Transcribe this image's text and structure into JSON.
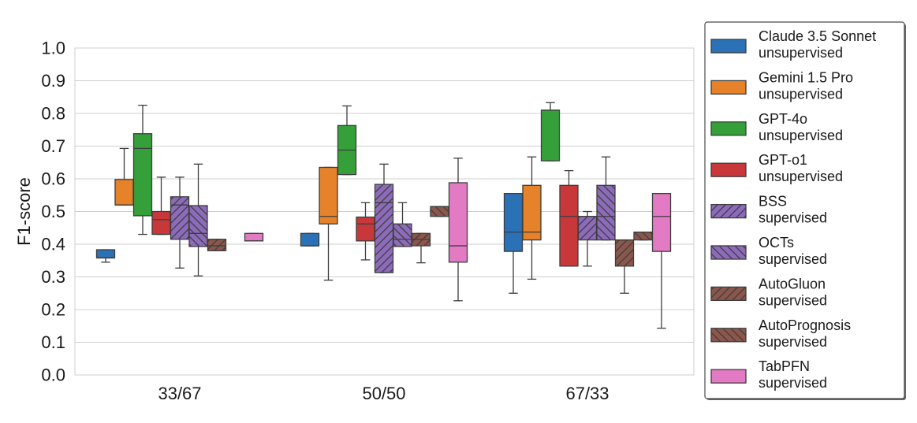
{
  "chart_data": {
    "type": "box",
    "title": "",
    "xlabel": "",
    "ylabel": "F1-score",
    "ylim": [
      0.0,
      1.0
    ],
    "yticks": [
      "0.0",
      "0.1",
      "0.2",
      "0.3",
      "0.4",
      "0.5",
      "0.6",
      "0.7",
      "0.8",
      "0.9",
      "1.0"
    ],
    "grid": true,
    "legend_position": "right-outside",
    "categories": [
      "33/67",
      "50/50",
      "67/33"
    ],
    "series": [
      {
        "name": "Claude 3.5 Sonnet",
        "sub": "unsupervised",
        "color": "#2a72b5",
        "hatch": "none",
        "boxes": [
          {
            "whislo": 0.345,
            "q1": 0.358,
            "med": 0.358,
            "q3": 0.383,
            "whishi": 0.383
          },
          {
            "whislo": 0.395,
            "q1": 0.395,
            "med": 0.395,
            "q3": 0.433,
            "whishi": 0.433
          },
          {
            "whislo": 0.25,
            "q1": 0.378,
            "med": 0.437,
            "q3": 0.555,
            "whishi": 0.555
          }
        ]
      },
      {
        "name": "Gemini 1.5 Pro",
        "sub": "unsupervised",
        "color": "#e6822a",
        "hatch": "none",
        "boxes": [
          {
            "whislo": 0.52,
            "q1": 0.52,
            "med": 0.52,
            "q3": 0.598,
            "whishi": 0.693
          },
          {
            "whislo": 0.29,
            "q1": 0.462,
            "med": 0.485,
            "q3": 0.635,
            "whishi": 0.635
          },
          {
            "whislo": 0.293,
            "q1": 0.413,
            "med": 0.437,
            "q3": 0.58,
            "whishi": 0.667
          }
        ]
      },
      {
        "name": "GPT-4o",
        "sub": "unsupervised",
        "color": "#35a03a",
        "hatch": "none",
        "boxes": [
          {
            "whislo": 0.43,
            "q1": 0.487,
            "med": 0.693,
            "q3": 0.738,
            "whishi": 0.825
          },
          {
            "whislo": 0.613,
            "q1": 0.613,
            "med": 0.688,
            "q3": 0.763,
            "whishi": 0.823
          },
          {
            "whislo": 0.655,
            "q1": 0.655,
            "med": 0.81,
            "q3": 0.81,
            "whishi": 0.833
          }
        ]
      },
      {
        "name": "GPT-o1",
        "sub": "unsupervised",
        "color": "#c8383a",
        "hatch": "none",
        "boxes": [
          {
            "whislo": 0.43,
            "q1": 0.43,
            "med": 0.475,
            "q3": 0.5,
            "whishi": 0.605
          },
          {
            "whislo": 0.352,
            "q1": 0.41,
            "med": 0.462,
            "q3": 0.483,
            "whishi": 0.527
          },
          {
            "whislo": 0.333,
            "q1": 0.333,
            "med": 0.485,
            "q3": 0.58,
            "whishi": 0.625
          }
        ]
      },
      {
        "name": "BSS",
        "sub": "supervised",
        "color": "#8d6bbb",
        "hatch": "fwd",
        "boxes": [
          {
            "whislo": 0.327,
            "q1": 0.415,
            "med": 0.52,
            "q3": 0.545,
            "whishi": 0.605
          },
          {
            "whislo": 0.313,
            "q1": 0.313,
            "med": 0.527,
            "q3": 0.583,
            "whishi": 0.645
          },
          {
            "whislo": 0.333,
            "q1": 0.413,
            "med": 0.485,
            "q3": 0.485,
            "whishi": 0.5
          }
        ]
      },
      {
        "name": "OCTs",
        "sub": "supervised",
        "color": "#8d6bbb",
        "hatch": "back",
        "boxes": [
          {
            "whislo": 0.303,
            "q1": 0.393,
            "med": 0.433,
            "q3": 0.518,
            "whishi": 0.645
          },
          {
            "whislo": 0.393,
            "q1": 0.393,
            "med": 0.415,
            "q3": 0.462,
            "whishi": 0.527
          },
          {
            "whislo": 0.413,
            "q1": 0.413,
            "med": 0.485,
            "q3": 0.58,
            "whishi": 0.667
          }
        ]
      },
      {
        "name": "AutoGluon",
        "sub": "supervised",
        "color": "#8c564b",
        "hatch": "fwd",
        "boxes": [
          {
            "whislo": 0.38,
            "q1": 0.38,
            "med": 0.395,
            "q3": 0.415,
            "whishi": 0.415
          },
          {
            "whislo": 0.343,
            "q1": 0.395,
            "med": 0.415,
            "q3": 0.433,
            "whishi": 0.433
          },
          {
            "whislo": 0.25,
            "q1": 0.333,
            "med": 0.413,
            "q3": 0.413,
            "whishi": 0.413
          }
        ]
      },
      {
        "name": "AutoPrognosis",
        "sub": "supervised",
        "color": "#8c564b",
        "hatch": "back",
        "boxes": [
          null,
          {
            "whislo": 0.485,
            "q1": 0.485,
            "med": 0.515,
            "q3": 0.515,
            "whishi": 0.515
          },
          {
            "whislo": 0.413,
            "q1": 0.413,
            "med": 0.437,
            "q3": 0.437,
            "whishi": 0.437
          }
        ]
      },
      {
        "name": "TabPFN",
        "sub": "supervised",
        "color": "#e27bc3",
        "hatch": "none",
        "boxes": [
          {
            "whislo": 0.41,
            "q1": 0.41,
            "med": 0.41,
            "q3": 0.433,
            "whishi": 0.433
          },
          {
            "whislo": 0.227,
            "q1": 0.345,
            "med": 0.395,
            "q3": 0.588,
            "whishi": 0.663
          },
          {
            "whislo": 0.143,
            "q1": 0.378,
            "med": 0.485,
            "q3": 0.555,
            "whishi": 0.555
          }
        ]
      }
    ]
  }
}
